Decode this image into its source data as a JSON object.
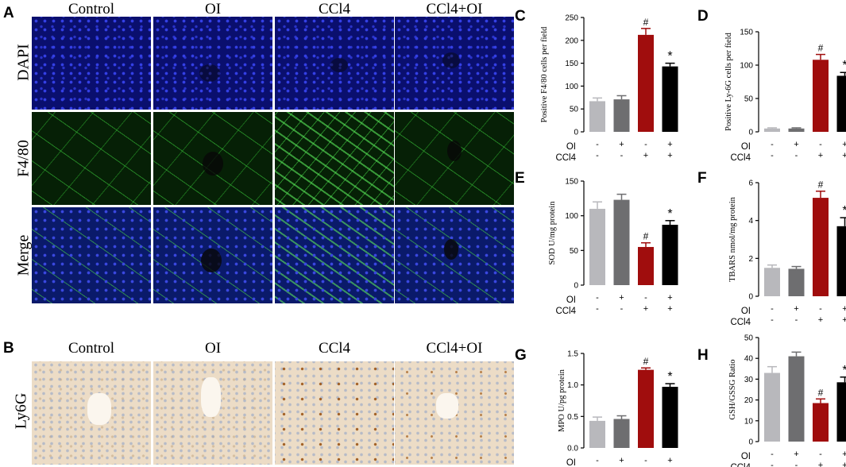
{
  "panels_images": {
    "A": {
      "letter": "A",
      "columns": [
        "Control",
        "OI",
        "CCl4",
        "CCl4+OI"
      ],
      "rows": [
        "DAPI",
        "F4/80",
        "Merge"
      ]
    },
    "B": {
      "letter": "B",
      "columns": [
        "Control",
        "OI",
        "CCl4",
        "CCl4+OI"
      ],
      "row": "Ly6G"
    }
  },
  "treatment": {
    "row1_label": "OI",
    "row2_label": "CCl4",
    "row1_signs": [
      "-",
      "+",
      "-",
      "+"
    ],
    "row2_signs": [
      "-",
      "-",
      "+",
      "+"
    ]
  },
  "colors": [
    "#b8b8bc",
    "#6e6e70",
    "#a00d0d",
    "#000000"
  ],
  "chart_data": [
    {
      "letter": "C",
      "type": "bar",
      "ylabel": "Positive F4/80 cells per field",
      "ylim": [
        0,
        250
      ],
      "yticks": [
        0,
        50,
        100,
        150,
        200,
        250
      ],
      "values": [
        67,
        71,
        212,
        143
      ],
      "errors": [
        7,
        8,
        14,
        7
      ],
      "markers": [
        "",
        "",
        "#",
        "*"
      ]
    },
    {
      "letter": "D",
      "type": "bar",
      "ylabel": "Positive Ly-6G cells per field",
      "ylim": [
        0,
        150
      ],
      "yticks": [
        0,
        50,
        100,
        150
      ],
      "values": [
        5,
        5,
        108,
        84
      ],
      "errors": [
        1,
        1,
        8,
        5
      ],
      "markers": [
        "",
        "",
        "#",
        "*"
      ]
    },
    {
      "letter": "E",
      "type": "bar",
      "ylabel": "SOD U/mg protein",
      "ylim": [
        0,
        150
      ],
      "yticks": [
        0,
        50,
        100,
        150
      ],
      "values": [
        110,
        123,
        55,
        87
      ],
      "errors": [
        10,
        8,
        6,
        6
      ],
      "markers": [
        "",
        "",
        "#",
        "*"
      ]
    },
    {
      "letter": "F",
      "type": "bar",
      "ylabel": "TBARS nmol/mg protein",
      "ylim": [
        0,
        6
      ],
      "yticks": [
        0,
        2,
        4,
        6
      ],
      "values": [
        1.5,
        1.45,
        5.2,
        3.7
      ],
      "errors": [
        0.15,
        0.12,
        0.35,
        0.45
      ],
      "markers": [
        "",
        "",
        "#",
        "*"
      ]
    },
    {
      "letter": "G",
      "type": "bar",
      "ylabel": "MPO U/pg protein",
      "ylim": [
        0,
        1.5
      ],
      "yticks": [
        0.0,
        0.5,
        1.0,
        1.5
      ],
      "values": [
        0.43,
        0.46,
        1.24,
        0.97
      ],
      "errors": [
        0.06,
        0.05,
        0.03,
        0.05
      ],
      "markers": [
        "",
        "",
        "#",
        "*"
      ]
    },
    {
      "letter": "H",
      "type": "bar",
      "ylabel": "GSH/GSSG Ratio",
      "ylim": [
        0,
        50
      ],
      "yticks": [
        0,
        10,
        20,
        30,
        40,
        50
      ],
      "values": [
        33,
        41,
        18.5,
        28.5
      ],
      "errors": [
        3,
        2,
        2,
        2.5
      ],
      "markers": [
        "",
        "",
        "#",
        "*"
      ]
    }
  ]
}
